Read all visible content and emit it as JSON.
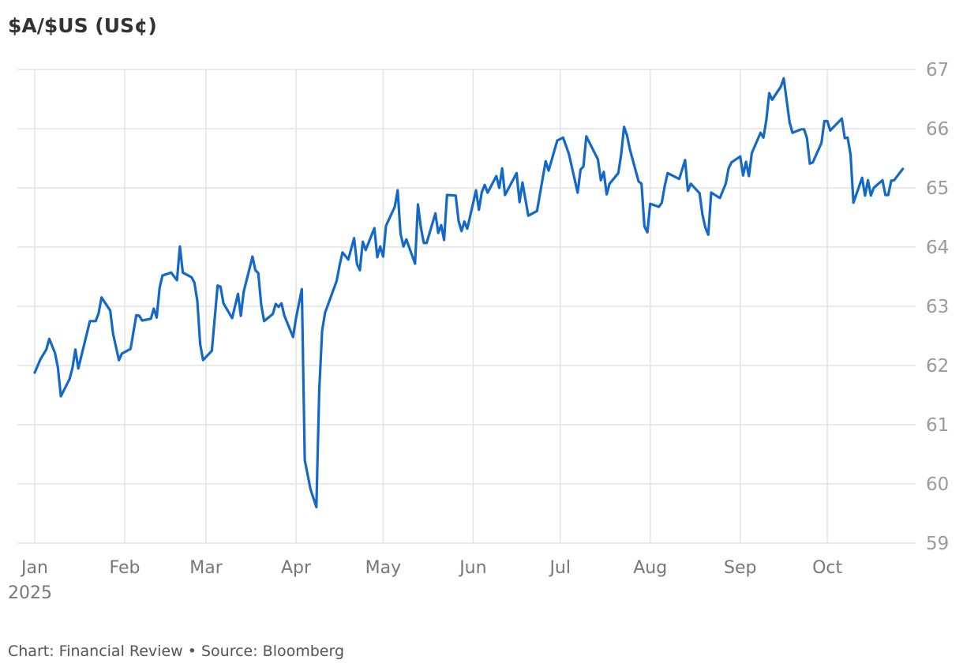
{
  "chart_data": {
    "type": "line",
    "title": "$A/$US (US¢)",
    "footer": "Chart: Financial Review • Source: Bloomberg",
    "xlabel": "",
    "ylabel": "",
    "ylim": [
      59,
      67
    ],
    "yticks": [
      59,
      60,
      61,
      62,
      63,
      64,
      65,
      66,
      67
    ],
    "y_axis_position": "right",
    "xticks": [
      {
        "date": "2025-01-01",
        "label": "Jan",
        "sublabel": "2025"
      },
      {
        "date": "2025-02-01",
        "label": "Feb"
      },
      {
        "date": "2025-03-01",
        "label": "Mar"
      },
      {
        "date": "2025-04-01",
        "label": "Apr"
      },
      {
        "date": "2025-05-01",
        "label": "May"
      },
      {
        "date": "2025-06-01",
        "label": "Jun"
      },
      {
        "date": "2025-07-01",
        "label": "Jul"
      },
      {
        "date": "2025-08-01",
        "label": "Aug"
      },
      {
        "date": "2025-09-01",
        "label": "Sep"
      },
      {
        "date": "2025-10-01",
        "label": "Oct"
      }
    ],
    "grid": true,
    "line_color": "#1368c8",
    "series": [
      {
        "points": [
          [
            "2025-01-01",
            61.88
          ],
          [
            "2025-01-03",
            62.11
          ],
          [
            "2025-01-05",
            62.27
          ],
          [
            "2025-01-06",
            62.45
          ],
          [
            "2025-01-08",
            62.21
          ],
          [
            "2025-01-09",
            61.96
          ],
          [
            "2025-01-10",
            61.48
          ],
          [
            "2025-01-13",
            61.77
          ],
          [
            "2025-01-14",
            61.96
          ],
          [
            "2025-01-15",
            62.27
          ],
          [
            "2025-01-16",
            61.95
          ],
          [
            "2025-01-20",
            62.75
          ],
          [
            "2025-01-22",
            62.75
          ],
          [
            "2025-01-23",
            62.88
          ],
          [
            "2025-01-24",
            63.15
          ],
          [
            "2025-01-27",
            62.93
          ],
          [
            "2025-01-28",
            62.53
          ],
          [
            "2025-01-30",
            62.09
          ],
          [
            "2025-01-31",
            62.2
          ],
          [
            "2025-02-03",
            62.28
          ],
          [
            "2025-02-05",
            62.85
          ],
          [
            "2025-02-06",
            62.84
          ],
          [
            "2025-02-07",
            62.76
          ],
          [
            "2025-02-10",
            62.79
          ],
          [
            "2025-02-11",
            62.96
          ],
          [
            "2025-02-12",
            62.81
          ],
          [
            "2025-02-13",
            63.31
          ],
          [
            "2025-02-14",
            63.52
          ],
          [
            "2025-02-17",
            63.57
          ],
          [
            "2025-02-19",
            63.44
          ],
          [
            "2025-02-20",
            64.01
          ],
          [
            "2025-02-21",
            63.57
          ],
          [
            "2025-02-24",
            63.49
          ],
          [
            "2025-02-25",
            63.4
          ],
          [
            "2025-02-26",
            63.09
          ],
          [
            "2025-02-27",
            62.36
          ],
          [
            "2025-02-28",
            62.09
          ],
          [
            "2025-03-03",
            62.25
          ],
          [
            "2025-03-05",
            63.35
          ],
          [
            "2025-03-06",
            63.33
          ],
          [
            "2025-03-07",
            63.05
          ],
          [
            "2025-03-10",
            62.8
          ],
          [
            "2025-03-12",
            63.21
          ],
          [
            "2025-03-13",
            62.84
          ],
          [
            "2025-03-14",
            63.25
          ],
          [
            "2025-03-17",
            63.84
          ],
          [
            "2025-03-18",
            63.61
          ],
          [
            "2025-03-19",
            63.56
          ],
          [
            "2025-03-20",
            63.03
          ],
          [
            "2025-03-21",
            62.75
          ],
          [
            "2025-03-24",
            62.87
          ],
          [
            "2025-03-25",
            63.04
          ],
          [
            "2025-03-26",
            62.99
          ],
          [
            "2025-03-27",
            63.05
          ],
          [
            "2025-03-28",
            62.84
          ],
          [
            "2025-03-31",
            62.48
          ],
          [
            "2025-04-01",
            62.8
          ],
          [
            "2025-04-03",
            63.29
          ],
          [
            "2025-04-04",
            60.4
          ],
          [
            "2025-04-06",
            59.91
          ],
          [
            "2025-04-08",
            59.61
          ],
          [
            "2025-04-09",
            61.57
          ],
          [
            "2025-04-10",
            62.59
          ],
          [
            "2025-04-11",
            62.89
          ],
          [
            "2025-04-15",
            63.43
          ],
          [
            "2025-04-16",
            63.69
          ],
          [
            "2025-04-17",
            63.91
          ],
          [
            "2025-04-19",
            63.79
          ],
          [
            "2025-04-21",
            64.15
          ],
          [
            "2025-04-22",
            63.71
          ],
          [
            "2025-04-23",
            63.61
          ],
          [
            "2025-04-24",
            64.09
          ],
          [
            "2025-04-25",
            63.95
          ],
          [
            "2025-04-28",
            64.32
          ],
          [
            "2025-04-29",
            63.83
          ],
          [
            "2025-04-30",
            64.01
          ],
          [
            "2025-05-01",
            63.84
          ],
          [
            "2025-05-02",
            64.36
          ],
          [
            "2025-05-05",
            64.68
          ],
          [
            "2025-05-06",
            64.96
          ],
          [
            "2025-05-07",
            64.23
          ],
          [
            "2025-05-08",
            64.01
          ],
          [
            "2025-05-09",
            64.13
          ],
          [
            "2025-05-12",
            63.72
          ],
          [
            "2025-05-13",
            64.72
          ],
          [
            "2025-05-14",
            64.33
          ],
          [
            "2025-05-15",
            64.07
          ],
          [
            "2025-05-16",
            64.07
          ],
          [
            "2025-05-19",
            64.57
          ],
          [
            "2025-05-20",
            64.24
          ],
          [
            "2025-05-21",
            64.37
          ],
          [
            "2025-05-22",
            64.12
          ],
          [
            "2025-05-23",
            64.88
          ],
          [
            "2025-05-26",
            64.87
          ],
          [
            "2025-05-27",
            64.44
          ],
          [
            "2025-05-28",
            64.27
          ],
          [
            "2025-05-29",
            64.43
          ],
          [
            "2025-05-30",
            64.31
          ],
          [
            "2025-06-02",
            64.96
          ],
          [
            "2025-06-03",
            64.63
          ],
          [
            "2025-06-04",
            64.93
          ],
          [
            "2025-06-05",
            65.05
          ],
          [
            "2025-06-06",
            64.92
          ],
          [
            "2025-06-09",
            65.2
          ],
          [
            "2025-06-10",
            65.0
          ],
          [
            "2025-06-11",
            65.33
          ],
          [
            "2025-06-12",
            64.88
          ],
          [
            "2025-06-16",
            65.25
          ],
          [
            "2025-06-17",
            64.76
          ],
          [
            "2025-06-18",
            65.09
          ],
          [
            "2025-06-20",
            64.53
          ],
          [
            "2025-06-23",
            64.61
          ],
          [
            "2025-06-26",
            65.45
          ],
          [
            "2025-06-27",
            65.29
          ],
          [
            "2025-06-30",
            65.8
          ],
          [
            "2025-07-02",
            65.85
          ],
          [
            "2025-07-04",
            65.57
          ],
          [
            "2025-07-07",
            64.92
          ],
          [
            "2025-07-08",
            65.31
          ],
          [
            "2025-07-09",
            65.36
          ],
          [
            "2025-07-10",
            65.87
          ],
          [
            "2025-07-14",
            65.48
          ],
          [
            "2025-07-15",
            65.13
          ],
          [
            "2025-07-16",
            65.27
          ],
          [
            "2025-07-17",
            64.89
          ],
          [
            "2025-07-18",
            65.07
          ],
          [
            "2025-07-21",
            65.25
          ],
          [
            "2025-07-22",
            65.57
          ],
          [
            "2025-07-23",
            66.03
          ],
          [
            "2025-07-24",
            65.89
          ],
          [
            "2025-07-25",
            65.65
          ],
          [
            "2025-07-28",
            65.11
          ],
          [
            "2025-07-29",
            65.07
          ],
          [
            "2025-07-30",
            64.35
          ],
          [
            "2025-07-31",
            64.25
          ],
          [
            "2025-08-01",
            64.73
          ],
          [
            "2025-08-04",
            64.68
          ],
          [
            "2025-08-05",
            64.75
          ],
          [
            "2025-08-06",
            65.03
          ],
          [
            "2025-08-07",
            65.25
          ],
          [
            "2025-08-11",
            65.15
          ],
          [
            "2025-08-13",
            65.47
          ],
          [
            "2025-08-14",
            64.95
          ],
          [
            "2025-08-15",
            65.07
          ],
          [
            "2025-08-18",
            64.91
          ],
          [
            "2025-08-19",
            64.55
          ],
          [
            "2025-08-20",
            64.33
          ],
          [
            "2025-08-21",
            64.21
          ],
          [
            "2025-08-22",
            64.92
          ],
          [
            "2025-08-25",
            64.83
          ],
          [
            "2025-08-27",
            65.07
          ],
          [
            "2025-08-28",
            65.33
          ],
          [
            "2025-08-29",
            65.43
          ],
          [
            "2025-09-01",
            65.53
          ],
          [
            "2025-09-02",
            65.21
          ],
          [
            "2025-09-03",
            65.44
          ],
          [
            "2025-09-04",
            65.2
          ],
          [
            "2025-09-05",
            65.59
          ],
          [
            "2025-09-08",
            65.93
          ],
          [
            "2025-09-09",
            65.85
          ],
          [
            "2025-09-10",
            66.15
          ],
          [
            "2025-09-11",
            66.6
          ],
          [
            "2025-09-12",
            66.49
          ],
          [
            "2025-09-15",
            66.71
          ],
          [
            "2025-09-16",
            66.85
          ],
          [
            "2025-09-18",
            66.11
          ],
          [
            "2025-09-19",
            65.93
          ],
          [
            "2025-09-22",
            65.99
          ],
          [
            "2025-09-23",
            65.99
          ],
          [
            "2025-09-24",
            65.84
          ],
          [
            "2025-09-25",
            65.41
          ],
          [
            "2025-09-26",
            65.43
          ],
          [
            "2025-09-29",
            65.76
          ],
          [
            "2025-09-30",
            66.13
          ],
          [
            "2025-10-01",
            66.13
          ],
          [
            "2025-10-02",
            65.97
          ],
          [
            "2025-10-06",
            66.17
          ],
          [
            "2025-10-07",
            65.84
          ],
          [
            "2025-10-08",
            65.85
          ],
          [
            "2025-10-09",
            65.57
          ],
          [
            "2025-10-10",
            64.75
          ],
          [
            "2025-10-13",
            65.17
          ],
          [
            "2025-10-14",
            64.87
          ],
          [
            "2025-10-15",
            65.13
          ],
          [
            "2025-10-16",
            64.87
          ],
          [
            "2025-10-17",
            65.0
          ],
          [
            "2025-10-20",
            65.13
          ],
          [
            "2025-10-21",
            64.88
          ],
          [
            "2025-10-22",
            64.88
          ],
          [
            "2025-10-23",
            65.12
          ],
          [
            "2025-10-24",
            65.13
          ],
          [
            "2025-10-27",
            65.32
          ]
        ]
      }
    ]
  }
}
